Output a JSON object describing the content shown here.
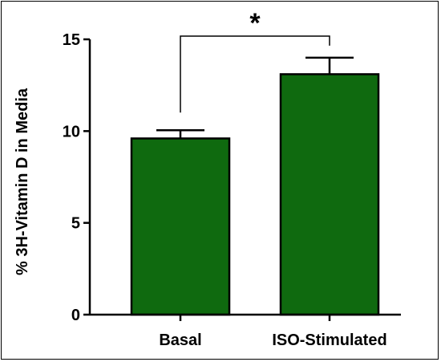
{
  "chart_data": {
    "type": "bar",
    "categories": [
      "Basal",
      "ISO-Stimulated"
    ],
    "values": [
      9.6,
      13.1
    ],
    "errors": [
      0.45,
      0.9
    ],
    "ylabel": "% 3H-Vitamin D in  Media",
    "xlabel": "",
    "ylim": [
      0,
      15
    ],
    "yticks": [
      0,
      5,
      10,
      15
    ],
    "ytick_labels": [
      "0",
      "5",
      "10",
      "15"
    ],
    "significance": {
      "label": "*",
      "between": [
        0,
        1
      ]
    },
    "bar_color": "#0f6a0f",
    "bar_edge_color": "#000000",
    "grid": false,
    "legend": "none"
  }
}
